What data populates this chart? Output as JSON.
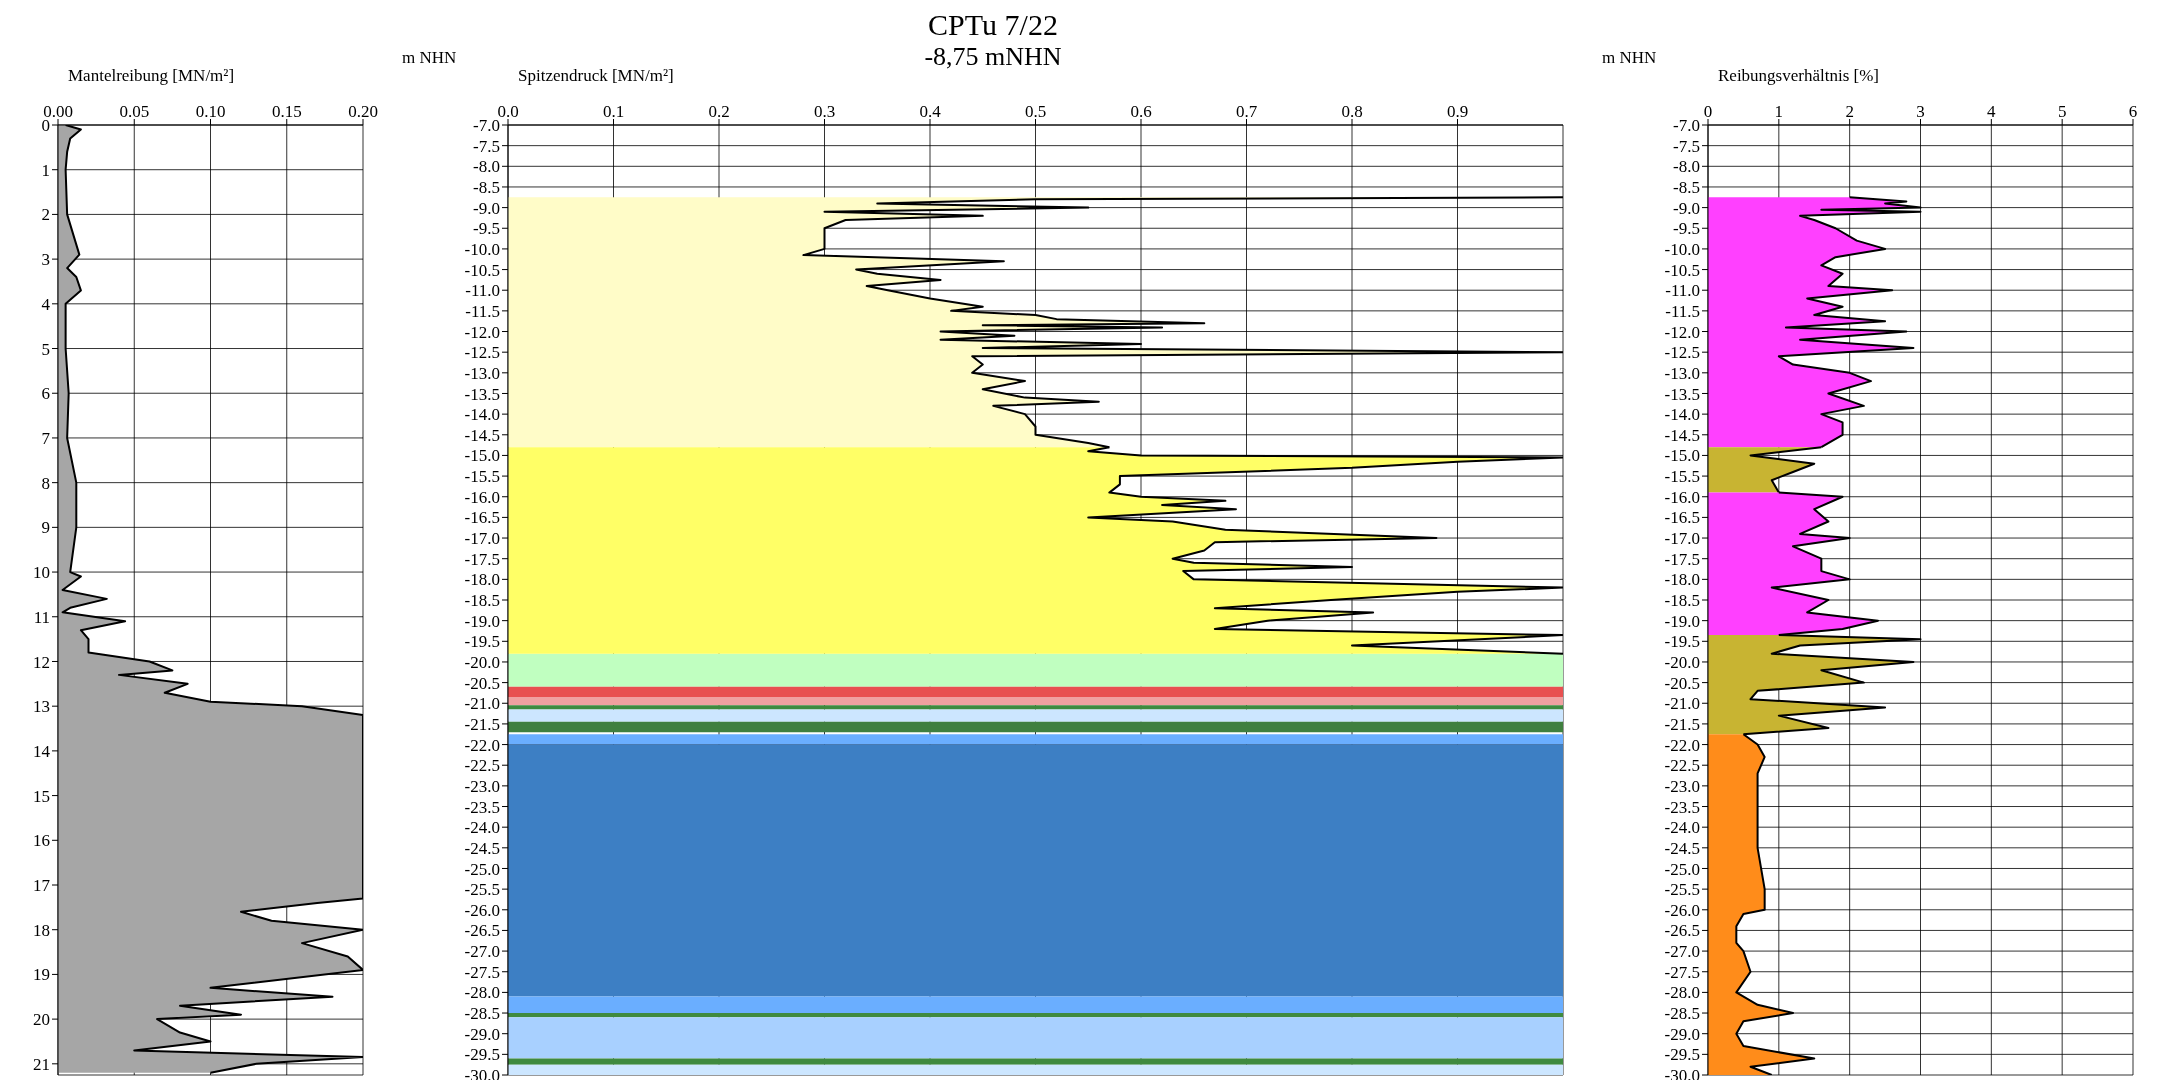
{
  "chart_data": [
    {
      "type": "area",
      "orientation": "horizontal",
      "xlabel": "Mantelreibung [MN/m²]",
      "xlim": [
        0,
        0.2
      ],
      "xticks": [
        {
          "value": 0,
          "label": "0.00"
        },
        {
          "value": 0.05,
          "label": "0.05"
        },
        {
          "value": 0.1,
          "label": "0.10"
        },
        {
          "value": 0.15,
          "label": "0.15"
        },
        {
          "value": 0.2,
          "label": "0.20"
        }
      ],
      "ylim": [
        21.25,
        0
      ],
      "yticks": [
        0,
        1,
        2,
        3,
        4,
        5,
        6,
        7,
        8,
        9,
        10,
        11,
        12,
        13,
        14,
        15,
        16,
        17,
        18,
        19,
        20,
        21
      ],
      "grid": true,
      "series": [
        {
          "color": "#a6a6a6",
          "x": [
            0,
            0.1,
            0.3,
            0.6,
            1,
            2,
            2.9,
            3.2,
            3.4,
            3.7,
            4,
            5,
            6,
            7,
            8,
            9,
            10,
            10.1,
            10.4,
            10.6,
            10.8,
            10.9,
            11.1,
            11.3,
            11.5,
            11.8,
            12,
            12.2,
            12.3,
            12.5,
            12.7,
            12.9,
            13,
            13.2,
            13.8,
            17.3,
            17.4,
            17.6,
            17.8,
            18,
            18.3,
            18.6,
            18.9,
            19.3,
            19.5,
            19.7,
            19.9,
            20,
            20.3,
            20.5,
            20.7,
            20.85,
            21,
            21.2
          ],
          "values": [
            0.005,
            0.015,
            0.008,
            0.006,
            0.005,
            0.006,
            0.014,
            0.006,
            0.012,
            0.015,
            0.005,
            0.005,
            0.007,
            0.006,
            0.012,
            0.012,
            0.008,
            0.015,
            0.003,
            0.032,
            0.008,
            0.003,
            0.044,
            0.015,
            0.02,
            0.02,
            0.06,
            0.075,
            0.04,
            0.085,
            0.07,
            0.1,
            0.16,
            0.2,
            0.2,
            0.2,
            0.17,
            0.12,
            0.14,
            0.2,
            0.16,
            0.19,
            0.2,
            0.1,
            0.18,
            0.08,
            0.12,
            0.065,
            0.08,
            0.1,
            0.05,
            0.2,
            0.13,
            0.1
          ]
        }
      ]
    },
    {
      "type": "area",
      "orientation": "horizontal",
      "title": "CPTu 7/22",
      "subtitle": "-8,75 mNHN",
      "xlabel": "Spitzendruck [MN/m²]",
      "ylabel": "m NHN",
      "xlim": [
        0,
        1
      ],
      "xticks": [
        {
          "value": 0,
          "label": "0.0"
        },
        0.1,
        0.2,
        0.3,
        0.4,
        0.5,
        0.6,
        0.7,
        0.8,
        0.9
      ],
      "ylim": [
        -30,
        -7
      ],
      "yticks": [
        {
          "value": -7,
          "label": "-7.0"
        },
        -7.5,
        {
          "value": -8,
          "label": "-8.0"
        },
        -8.5,
        {
          "value": -9,
          "label": "-9.0"
        },
        -9.5,
        {
          "value": -10,
          "label": "-10.0"
        },
        -10.5,
        {
          "value": -11,
          "label": "-11.0"
        },
        -11.5,
        {
          "value": -12,
          "label": "-12.0"
        },
        -12.5,
        {
          "value": -13,
          "label": "-13.0"
        },
        -13.5,
        {
          "value": -14,
          "label": "-14.0"
        },
        -14.5,
        {
          "value": -15,
          "label": "-15.0"
        },
        -15.5,
        {
          "value": -16,
          "label": "-16.0"
        },
        -16.5,
        {
          "value": -17,
          "label": "-17.0"
        },
        -17.5,
        {
          "value": -18,
          "label": "-18.0"
        },
        -18.5,
        {
          "value": -19,
          "label": "-19.0"
        },
        -19.5,
        {
          "value": -20,
          "label": "-20.0"
        },
        -20.5,
        {
          "value": -21,
          "label": "-21.0"
        },
        -21.5,
        {
          "value": -22,
          "label": "-22.0"
        },
        -22.5,
        {
          "value": -23,
          "label": "-23.0"
        },
        -23.5,
        {
          "value": -24,
          "label": "-24.0"
        },
        -24.5,
        {
          "value": -25,
          "label": "-25.0"
        },
        -25.5,
        {
          "value": -26,
          "label": "-26.0"
        },
        -26.5,
        {
          "value": -27,
          "label": "-27.0"
        },
        -27.5,
        {
          "value": -28,
          "label": "-28.0"
        },
        -28.5,
        {
          "value": -29,
          "label": "-29.0"
        },
        -29.5,
        {
          "value": -30,
          "label": "-30.0"
        }
      ],
      "grid": true,
      "series": [
        {
          "color": "#fffcc8",
          "x": [
            -8.75,
            -8.8,
            -8.9,
            -9,
            -9.1,
            -9.2,
            -9.3,
            -9.5,
            -9.8,
            -10,
            -10.15,
            -10.3,
            -10.5,
            -10.6,
            -10.75,
            -10.9,
            -11,
            -11.2,
            -11.4,
            -11.5,
            -11.6,
            -11.7,
            -11.8,
            -11.85,
            -11.9,
            -12,
            -12.1,
            -12.2,
            -12.3,
            -12.4,
            -12.5,
            -12.6,
            -12.8,
            -13,
            -13.2,
            -13.4,
            -13.6,
            -13.7,
            -13.8,
            -14,
            -14.3,
            -14.5,
            -14.7,
            -14.8
          ],
          "values": [
            1,
            0.5,
            0.35,
            0.55,
            0.3,
            0.45,
            0.32,
            0.3,
            0.3,
            0.3,
            0.28,
            0.47,
            0.33,
            0.35,
            0.41,
            0.34,
            0.36,
            0.4,
            0.45,
            0.42,
            0.5,
            0.52,
            0.66,
            0.45,
            0.62,
            0.41,
            0.48,
            0.41,
            0.6,
            0.45,
            1,
            0.44,
            0.45,
            0.44,
            0.49,
            0.45,
            0.49,
            0.56,
            0.46,
            0.49,
            0.5,
            0.5,
            0.55,
            0.57
          ]
        },
        {
          "color": "#ffff66",
          "x": [
            -14.8,
            -14.9,
            -15,
            -15.05,
            -15.15,
            -15.3,
            -15.5,
            -15.7,
            -15.9,
            -16,
            -16.1,
            -16.2,
            -16.3,
            -16.5,
            -16.6,
            -16.8,
            -17,
            -17.1,
            -17.3,
            -17.5,
            -17.6,
            -17.7,
            -17.8,
            -18,
            -18.2,
            -18.3,
            -18.5,
            -18.7,
            -18.8,
            -19,
            -19.2,
            -19.35,
            -19.6,
            -19.8
          ],
          "values": [
            0.57,
            0.55,
            0.6,
            1,
            0.9,
            0.8,
            0.58,
            0.58,
            0.57,
            0.6,
            0.68,
            0.62,
            0.69,
            0.55,
            0.63,
            0.68,
            0.88,
            0.67,
            0.66,
            0.63,
            0.65,
            0.8,
            0.64,
            0.65,
            1,
            0.9,
            0.78,
            0.67,
            0.82,
            0.72,
            0.67,
            1,
            0.8,
            1
          ]
        }
      ],
      "bands": [
        {
          "axis": "y",
          "from": -19.8,
          "to": -20.6,
          "color": "#c0ffc0"
        },
        {
          "axis": "y",
          "from": -20.6,
          "to": -20.85,
          "color": "#e85050"
        },
        {
          "axis": "y",
          "from": -20.85,
          "to": -21.05,
          "color": "#f0a0a0"
        },
        {
          "axis": "y",
          "from": -21.05,
          "to": -21.15,
          "color": "#3f8a3f"
        },
        {
          "axis": "y",
          "from": -21.15,
          "to": -21.45,
          "color": "#cce6ff"
        },
        {
          "axis": "y",
          "from": -21.45,
          "to": -21.7,
          "color": "#3f7f3f"
        },
        {
          "axis": "y",
          "from": -21.75,
          "to": -22,
          "color": "#6aaeff"
        },
        {
          "axis": "y",
          "from": -22,
          "to": -28.1,
          "color": "#3d7fc4"
        },
        {
          "axis": "y",
          "from": -28.1,
          "to": -28.5,
          "color": "#6aaeff"
        },
        {
          "axis": "y",
          "from": -28.5,
          "to": -28.6,
          "color": "#3f8a3f"
        },
        {
          "axis": "y",
          "from": -28.6,
          "to": -29.6,
          "color": "#a8d0ff"
        },
        {
          "axis": "y",
          "from": -29.6,
          "to": -29.75,
          "color": "#3f8a3f"
        },
        {
          "axis": "y",
          "from": -29.75,
          "to": -30,
          "color": "#cce6ff"
        }
      ]
    },
    {
      "type": "area",
      "orientation": "horizontal",
      "xlabel": "Reibungsverhältnis [%]",
      "ylabel": "m NHN",
      "xlim": [
        0,
        6
      ],
      "xticks": [
        0,
        1,
        2,
        3,
        4,
        5,
        6
      ],
      "ylim": [
        -30,
        -7
      ],
      "yticks": [
        {
          "value": -7,
          "label": "-7.0"
        },
        -7.5,
        {
          "value": -8,
          "label": "-8.0"
        },
        -8.5,
        {
          "value": -9,
          "label": "-9.0"
        },
        -9.5,
        {
          "value": -10,
          "label": "-10.0"
        },
        -10.5,
        {
          "value": -11,
          "label": "-11.0"
        },
        -11.5,
        {
          "value": -12,
          "label": "-12.0"
        },
        -12.5,
        {
          "value": -13,
          "label": "-13.0"
        },
        -13.5,
        {
          "value": -14,
          "label": "-14.0"
        },
        -14.5,
        {
          "value": -15,
          "label": "-15.0"
        },
        -15.5,
        {
          "value": -16,
          "label": "-16.0"
        },
        -16.5,
        {
          "value": -17,
          "label": "-17.0"
        },
        -17.5,
        {
          "value": -18,
          "label": "-18.0"
        },
        -18.5,
        {
          "value": -19,
          "label": "-19.0"
        },
        -19.5,
        {
          "value": -20,
          "label": "-20.0"
        },
        -20.5,
        {
          "value": -21,
          "label": "-21.0"
        },
        -21.5,
        {
          "value": -22,
          "label": "-22.0"
        },
        -22.5,
        {
          "value": -23,
          "label": "-23.0"
        },
        -23.5,
        {
          "value": -24,
          "label": "-24.0"
        },
        -24.5,
        {
          "value": -25,
          "label": "-25.0"
        },
        -25.5,
        {
          "value": -26,
          "label": "-26.0"
        },
        -26.5,
        {
          "value": -27,
          "label": "-27.0"
        },
        -27.5,
        {
          "value": -28,
          "label": "-28.0"
        },
        -28.5,
        {
          "value": -29,
          "label": "-29.0"
        },
        -29.5,
        {
          "value": -30,
          "label": "-30.0"
        }
      ],
      "grid": true,
      "series": [
        {
          "color": "#ff40ff",
          "x": [
            -8.75,
            -8.85,
            -8.9,
            -9,
            -9.05,
            -9.1,
            -9.2,
            -9.3,
            -9.5,
            -9.8,
            -10,
            -10.2,
            -10.4,
            -10.6,
            -10.9,
            -11,
            -11.2,
            -11.4,
            -11.6,
            -11.75,
            -11.9,
            -12,
            -12.2,
            -12.4,
            -12.6,
            -12.8,
            -13,
            -13.2,
            -13.5,
            -13.8,
            -14,
            -14.2,
            -14.5,
            -14.8
          ],
          "values": [
            2,
            2.8,
            2.5,
            3,
            1.6,
            3,
            1.3,
            1.5,
            1.8,
            2.1,
            2.5,
            1.8,
            1.6,
            1.9,
            1.7,
            2.6,
            1.4,
            1.9,
            1.5,
            2.5,
            1.1,
            2.8,
            1.3,
            2.9,
            1,
            1.2,
            2,
            2.3,
            1.7,
            2.2,
            1.6,
            1.9,
            1.9,
            1.6
          ]
        },
        {
          "color": "#c8b432",
          "x": [
            -14.8,
            -15,
            -15.2,
            -15.4,
            -15.6,
            -15.9
          ],
          "values": [
            1.6,
            0.6,
            1.5,
            1.2,
            0.9,
            1
          ]
        },
        {
          "color": "#ff40ff",
          "x": [
            -15.9,
            -16,
            -16.3,
            -16.6,
            -16.9,
            -17,
            -17.2,
            -17.5,
            -17.8,
            -18,
            -18.2,
            -18.5,
            -18.8,
            -19,
            -19.2,
            -19.35
          ],
          "values": [
            1,
            1.9,
            1.5,
            1.7,
            1.3,
            2,
            1.2,
            1.6,
            1.6,
            2,
            0.9,
            1.7,
            1.4,
            2.4,
            1.9,
            1
          ]
        },
        {
          "color": "#c8b432",
          "x": [
            -19.35,
            -19.45,
            -19.6,
            -19.8,
            -20,
            -20.2,
            -20.5,
            -20.7,
            -20.9,
            -21.1,
            -21.3,
            -21.6,
            -21.75
          ],
          "values": [
            1,
            3,
            1.3,
            0.9,
            2.9,
            1.6,
            2.2,
            0.7,
            0.6,
            2.5,
            1,
            1.7,
            0.5
          ]
        },
        {
          "color": "#ff8c1a",
          "x": [
            -21.75,
            -22,
            -22.3,
            -22.7,
            -23.5,
            -24.5,
            -25.5,
            -26,
            -26.1,
            -26.4,
            -26.8,
            -27,
            -27.5,
            -28,
            -28.3,
            -28.5,
            -28.7,
            -29,
            -29.3,
            -29.6,
            -29.8,
            -30
          ],
          "values": [
            0.5,
            0.7,
            0.8,
            0.7,
            0.7,
            0.7,
            0.8,
            0.8,
            0.5,
            0.4,
            0.4,
            0.5,
            0.6,
            0.4,
            0.7,
            1.2,
            0.5,
            0.4,
            0.5,
            1.5,
            0.6,
            0.9
          ]
        }
      ]
    }
  ]
}
